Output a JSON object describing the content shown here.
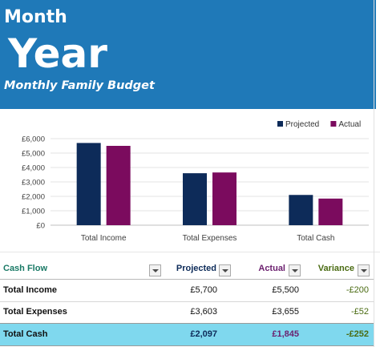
{
  "header": {
    "month": "Month",
    "year": "Year",
    "subtitle": "Monthly Family Budget",
    "bg_color": "#1f79b8"
  },
  "chart_data": {
    "type": "bar",
    "categories": [
      "Total Income",
      "Total Expenses",
      "Total Cash"
    ],
    "series": [
      {
        "name": "Projected",
        "values": [
          5700,
          3603,
          2097
        ],
        "color": "#0d2b59"
      },
      {
        "name": "Actual",
        "values": [
          5500,
          3655,
          1845
        ],
        "color": "#7b0b5e"
      }
    ],
    "ylim": [
      0,
      6000
    ],
    "yticks": [
      0,
      1000,
      2000,
      3000,
      4000,
      5000,
      6000
    ],
    "ytick_labels": [
      "£0",
      "£1,000",
      "£2,000",
      "£3,000",
      "£4,000",
      "£5,000",
      "£6,000"
    ],
    "grid": true,
    "legend": "top-right",
    "title": "",
    "xlabel": "",
    "ylabel": ""
  },
  "table": {
    "headers": {
      "cash_flow": "Cash Flow",
      "projected": "Projected",
      "actual": "Actual",
      "variance": "Variance"
    },
    "header_colors": {
      "cash_flow": "#1a7a66",
      "projected": "#0d2b59",
      "actual": "#6b1f6e",
      "variance": "#4a6b12"
    },
    "rows": [
      {
        "label": "Total Income",
        "projected": "£5,700",
        "actual": "£5,500",
        "variance": "-£200"
      },
      {
        "label": "Total Expenses",
        "projected": "£3,603",
        "actual": "£3,655",
        "variance": "-£52"
      },
      {
        "label": "Total Cash",
        "projected": "£2,097",
        "actual": "£1,845",
        "variance": "-£252"
      }
    ],
    "total_row_color": "#7fd8ee"
  }
}
